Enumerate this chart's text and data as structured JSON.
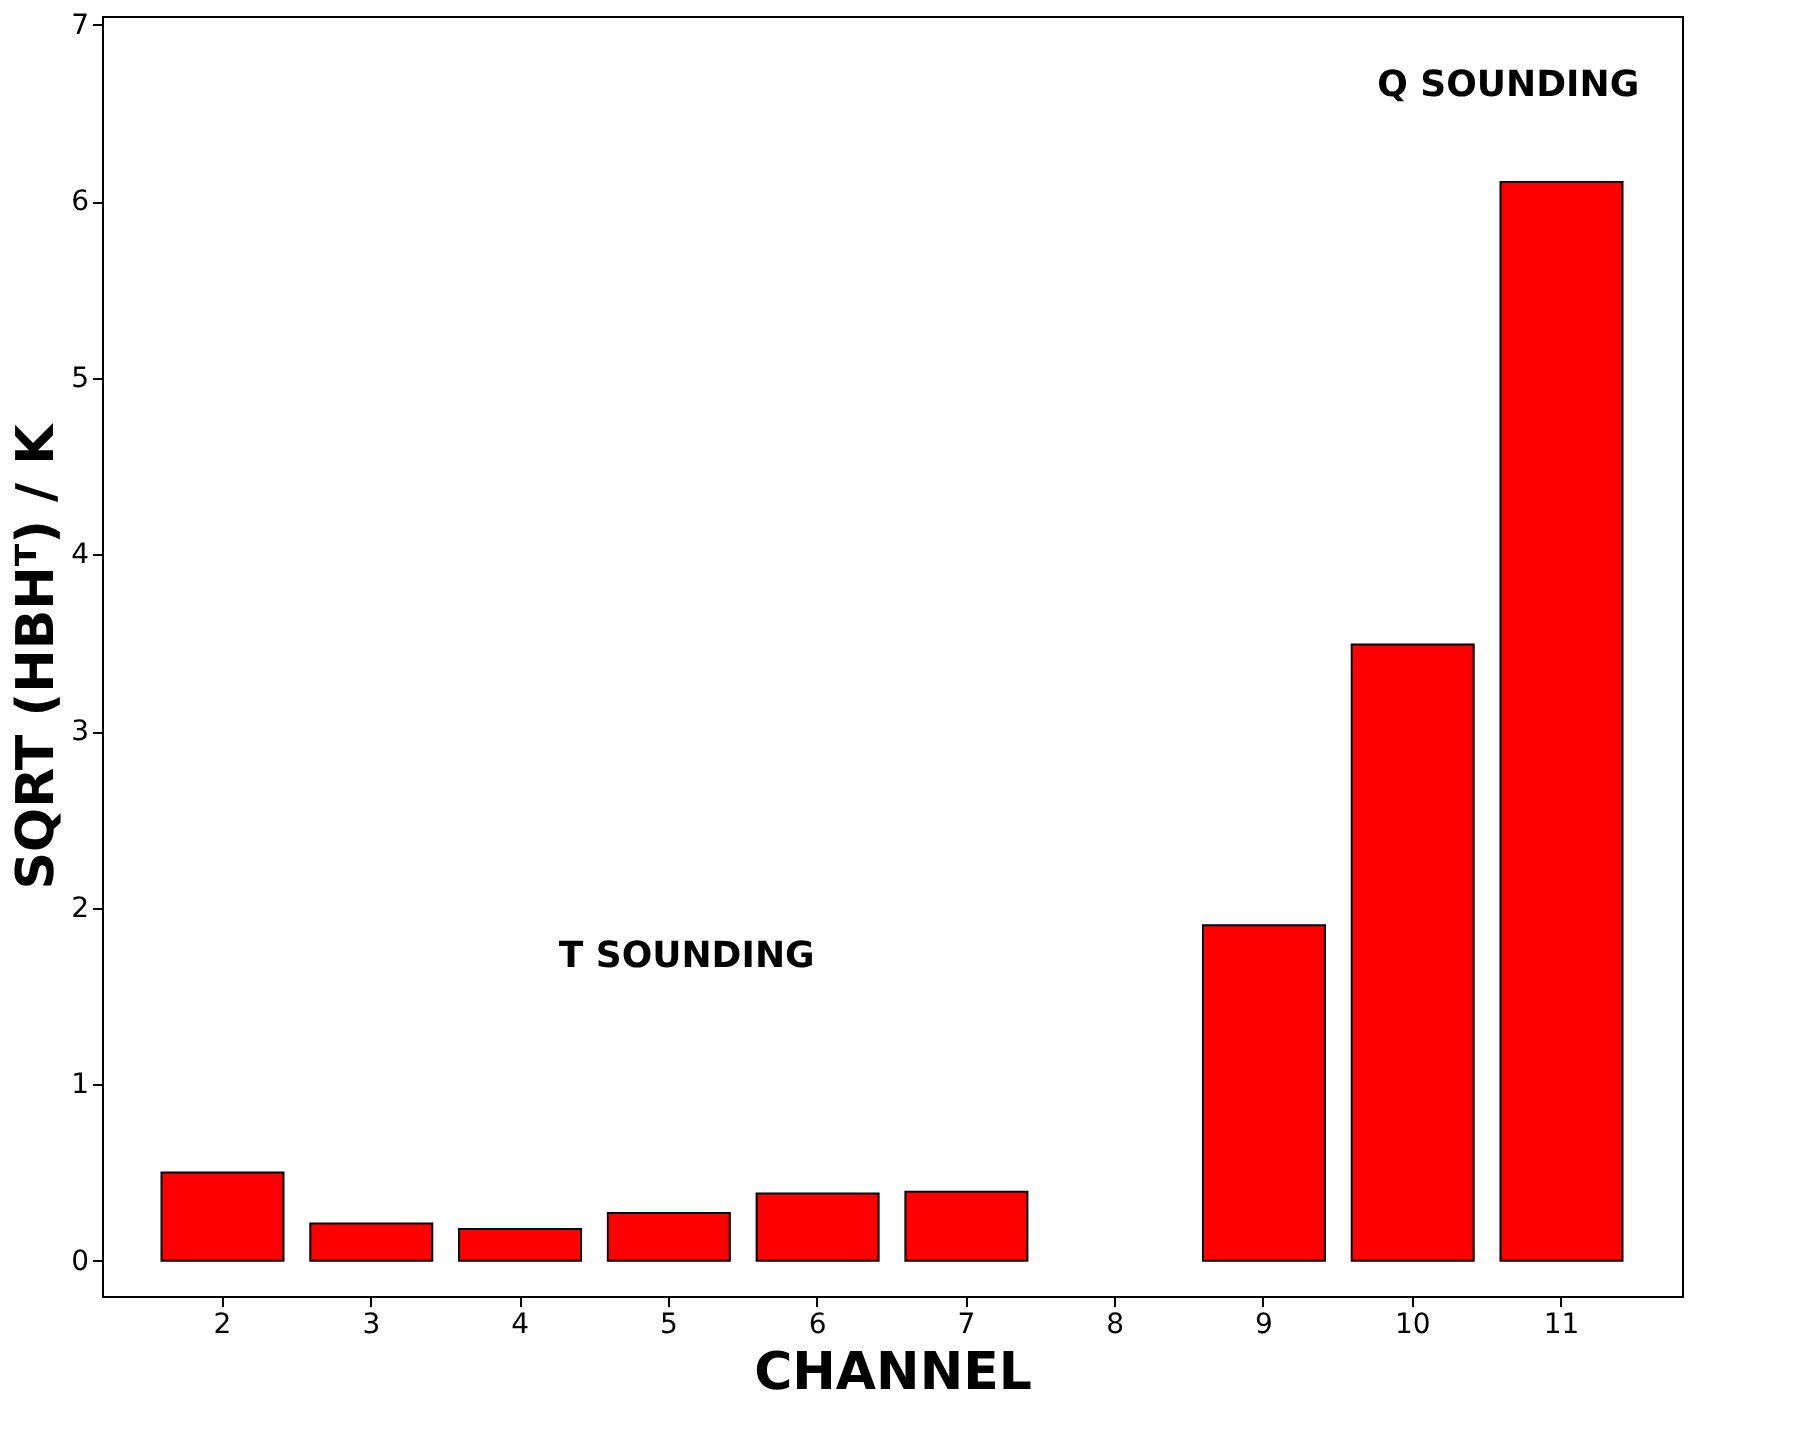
{
  "chart_data": {
    "type": "bar",
    "xlabel": "CHANNEL",
    "ylabel": "SQRT (HBHᵀ)  /  K",
    "categories": [
      "2",
      "3",
      "4",
      "5",
      "6",
      "7",
      "8",
      "9",
      "10",
      "11"
    ],
    "values": [
      0.5,
      0.21,
      0.18,
      0.27,
      0.38,
      0.39,
      null,
      1.9,
      3.49,
      6.11
    ],
    "color": "#ff0000",
    "ylim": [
      -0.2,
      7.05
    ],
    "yticks": [
      0,
      1,
      2,
      3,
      4,
      5,
      6,
      7
    ],
    "grid": false,
    "annotations": [
      "T SOUNDING",
      "Q SOUNDING"
    ]
  }
}
